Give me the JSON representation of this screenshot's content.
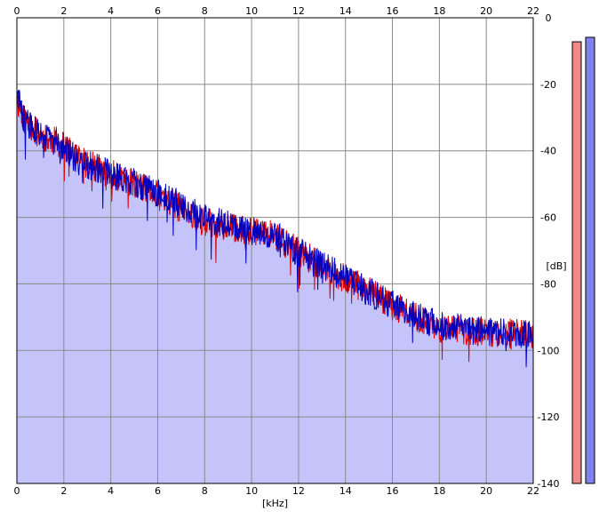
{
  "chart_data": {
    "type": "area",
    "xlabel": "[kHz]",
    "ylabel": "[dB]",
    "xlim": [
      0,
      22
    ],
    "ylim": [
      -140,
      0
    ],
    "x_ticks": [
      "0",
      "2",
      "4",
      "6",
      "8",
      "10",
      "12",
      "14",
      "16",
      "18",
      "20",
      "22"
    ],
    "y_ticks": [
      "0",
      "-20",
      "-40",
      "-60",
      "-80",
      "-100",
      "-120",
      "-140"
    ],
    "grid": true,
    "x_tick_values": [
      0,
      2,
      4,
      6,
      8,
      10,
      12,
      14,
      16,
      18,
      20,
      22
    ],
    "y_tick_values": [
      0,
      -20,
      -40,
      -60,
      -80,
      -100,
      -120,
      -140
    ],
    "series": [
      {
        "color": "#e00000",
        "trend_x": [
          0,
          0.3,
          1,
          1.8,
          2.5,
          3.5,
          4.5,
          6,
          8,
          10,
          11,
          12,
          14,
          16,
          18,
          20,
          22
        ],
        "trend_y": [
          -24,
          -30,
          -35,
          -37,
          -42,
          -45,
          -48,
          -53,
          -61,
          -64,
          -65,
          -70,
          -78,
          -86,
          -93,
          -94,
          -95
        ],
        "noise_amplitude": 4.5,
        "seed": 11
      },
      {
        "color": "#0000c0",
        "trend_x": [
          0,
          0.3,
          1,
          1.8,
          2.5,
          3.5,
          4.5,
          6,
          8,
          10,
          11,
          12,
          14,
          16,
          18,
          20,
          22
        ],
        "trend_y": [
          -23,
          -30,
          -35,
          -37,
          -42,
          -45,
          -48,
          -52,
          -60,
          -63,
          -65,
          -70,
          -78,
          -86,
          -92,
          -94,
          -95
        ],
        "noise_amplitude": 4.5,
        "seed": 29
      }
    ],
    "fill_color": "#c4c4fb",
    "meters": [
      {
        "color": "#f08a86",
        "level": 0.99
      },
      {
        "color": "#8282ee",
        "level": 1.0
      }
    ]
  }
}
